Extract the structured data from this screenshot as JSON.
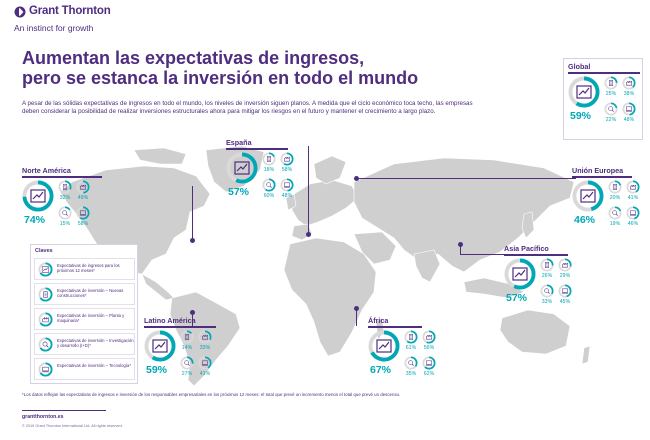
{
  "brand": {
    "name": "Grant Thornton",
    "tagline": "An instinct for growth",
    "mark_color": "#4f2d7f"
  },
  "headline": {
    "line1": "Aumentan las expectativas de ingresos,",
    "line2": "pero se estanca la inversión en todo el mundo"
  },
  "intro": "A pesar de las sólidas expectativas de ingresos en todo el mundo, los niveles de inversión siguen planos. A medida que el ciclo económico toca techo, las empresas deben considerar la posibilidad de realizar inversiones estructurales ahora para mitigar los riesgos en el futuro y mantener el crecimiento a largo plazo.",
  "colors": {
    "primary": "#4f2d7f",
    "accent": "#00a7b5",
    "map": "#cfcfcf",
    "ring_track": "#d9d9d9"
  },
  "regions": {
    "global": {
      "name": "Global",
      "revenue": "59%",
      "values": [
        "25%",
        "38%",
        "22%",
        "48%"
      ],
      "fractions": [
        0.59,
        0.25,
        0.38,
        0.22,
        0.48
      ]
    },
    "north_america": {
      "name": "Norte América",
      "revenue": "74%",
      "values": [
        "32%",
        "49%",
        "15%",
        "58%"
      ],
      "fractions": [
        0.74,
        0.32,
        0.49,
        0.15,
        0.58
      ]
    },
    "spain": {
      "name": "España",
      "revenue": "57%",
      "values": [
        "18%",
        "58%",
        "60%",
        "48%"
      ],
      "fractions": [
        0.57,
        0.18,
        0.58,
        0.6,
        0.48
      ]
    },
    "european_union": {
      "name": "Unión Europea",
      "revenue": "46%",
      "values": [
        "20%",
        "41%",
        "19%",
        "46%"
      ],
      "fractions": [
        0.46,
        0.2,
        0.41,
        0.19,
        0.46
      ]
    },
    "asia_pacific": {
      "name": "Asia Pacífico",
      "revenue": "57%",
      "values": [
        "26%",
        "29%",
        "33%",
        "45%"
      ],
      "fractions": [
        0.57,
        0.26,
        0.29,
        0.33,
        0.45
      ]
    },
    "latin_america": {
      "name": "Latino América",
      "revenue": "59%",
      "values": [
        "14%",
        "33%",
        "27%",
        "41%"
      ],
      "fractions": [
        0.59,
        0.14,
        0.33,
        0.27,
        0.41
      ]
    },
    "africa": {
      "name": "África",
      "revenue": "67%",
      "values": [
        "61%",
        "56%",
        "35%",
        "62%"
      ],
      "fractions": [
        0.67,
        0.61,
        0.56,
        0.35,
        0.62
      ]
    }
  },
  "legend": {
    "title": "Claves",
    "items": [
      {
        "label": "Expectativas de ingresos para los próximos 12 meses*",
        "icon": "revenue-chart-icon"
      },
      {
        "label": "Expectativas de inversión – Nuevas construcciones*",
        "icon": "building-icon"
      },
      {
        "label": "Expectativas de inversión – Planta y maquinaria*",
        "icon": "factory-icon"
      },
      {
        "label": "Expectativas de inversión – Investigación y desarrollo (I+D)*",
        "icon": "research-icon"
      },
      {
        "label": "Expectativas de inversión – Tecnología*",
        "icon": "technology-icon"
      }
    ]
  },
  "footnote": "*Los datos reflejan las expectativas de ingresos e inversión de los responsables empresariales en los próximos 12 meses: el total que prevé un incremento menos el total que prevé un descenso.",
  "footer": {
    "site": "grantthornton.es",
    "copyright": "© 2019 Grant Thornton International Ltd. All rights reserved."
  }
}
